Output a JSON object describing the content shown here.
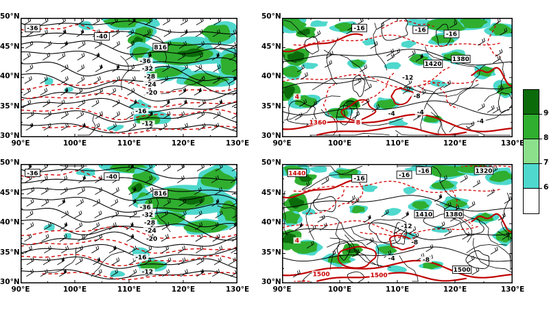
{
  "chart_data": {
    "type": "contour-map-grid",
    "rows": 2,
    "cols": 2,
    "x_axis": {
      "ticks": [
        "90°E",
        "100°E",
        "110°E",
        "120°E",
        "130°E"
      ],
      "range_deg": [
        90,
        130
      ]
    },
    "y_axis": {
      "ticks": [
        "50°N",
        "45°N",
        "40°N",
        "35°N",
        "30°N"
      ],
      "range_deg": [
        50,
        30
      ]
    },
    "colorbar": {
      "tick_labels": [
        "90",
        "80",
        "70",
        "60"
      ],
      "segment_colors": [
        "#0b6b0b",
        "#2fae2f",
        "#8ce08c",
        "#4fd8cd",
        "#ffffff"
      ]
    },
    "map_colors": {
      "shading_cyan": "#4fd8cd",
      "shading_green": "#2fae2f",
      "shading_dark_green": "#0b6b0b",
      "contour_black": "#000000",
      "contour_red": "#cc0000"
    },
    "panels": [
      {
        "id": "top-left",
        "contour_labels": [
          {
            "text": "-36",
            "x": 0.055,
            "y": 0.085,
            "boxed": true
          },
          {
            "text": "-40",
            "x": 0.375,
            "y": 0.155,
            "boxed": true
          },
          {
            "text": "816",
            "x": 0.645,
            "y": 0.245,
            "boxed": true
          },
          {
            "text": "-36",
            "x": 0.575,
            "y": 0.36
          },
          {
            "text": "-32",
            "x": 0.585,
            "y": 0.425
          },
          {
            "text": "-28",
            "x": 0.595,
            "y": 0.49
          },
          {
            "text": "-24",
            "x": 0.6,
            "y": 0.555
          },
          {
            "text": "-20",
            "x": 0.605,
            "y": 0.625
          },
          {
            "text": "-16",
            "x": 0.555,
            "y": 0.78
          },
          {
            "text": "-12",
            "x": 0.585,
            "y": 0.885
          }
        ]
      },
      {
        "id": "top-right",
        "contour_labels": [
          {
            "text": "-16",
            "x": 0.335,
            "y": 0.085,
            "boxed": true
          },
          {
            "text": "-16",
            "x": 0.6,
            "y": 0.1,
            "boxed": true
          },
          {
            "text": "-16",
            "x": 0.735,
            "y": 0.135,
            "boxed": true
          },
          {
            "text": "1420",
            "x": 0.655,
            "y": 0.385,
            "boxed": true
          },
          {
            "text": "1380",
            "x": 0.775,
            "y": 0.345,
            "boxed": true
          },
          {
            "text": "-12",
            "x": 0.545,
            "y": 0.5
          },
          {
            "text": "-8",
            "x": 0.585,
            "y": 0.655
          },
          {
            "text": "-4",
            "x": 0.475,
            "y": 0.8
          },
          {
            "text": "-4",
            "x": 0.6,
            "y": 0.79
          },
          {
            "text": "-4",
            "x": 0.86,
            "y": 0.865
          },
          {
            "text": "4",
            "x": 0.065,
            "y": 0.66,
            "color": "red"
          },
          {
            "text": "1360",
            "x": 0.155,
            "y": 0.875,
            "color": "red"
          },
          {
            "text": "8",
            "x": 0.33,
            "y": 0.875,
            "color": "red"
          }
        ]
      },
      {
        "id": "bottom-left",
        "contour_labels": [
          {
            "text": "-36",
            "x": 0.055,
            "y": 0.075,
            "boxed": true
          },
          {
            "text": "-40",
            "x": 0.42,
            "y": 0.105,
            "boxed": true
          },
          {
            "text": "816",
            "x": 0.645,
            "y": 0.245,
            "boxed": true
          },
          {
            "text": "-36",
            "x": 0.575,
            "y": 0.36
          },
          {
            "text": "-32",
            "x": 0.585,
            "y": 0.425
          },
          {
            "text": "-28",
            "x": 0.595,
            "y": 0.49
          },
          {
            "text": "-24",
            "x": 0.6,
            "y": 0.555
          },
          {
            "text": "-20",
            "x": 0.605,
            "y": 0.625
          },
          {
            "text": "-16",
            "x": 0.555,
            "y": 0.78
          },
          {
            "text": "-12",
            "x": 0.585,
            "y": 0.9
          }
        ]
      },
      {
        "id": "bottom-right",
        "contour_labels": [
          {
            "text": "1440",
            "x": 0.065,
            "y": 0.075,
            "color": "red",
            "boxed": true
          },
          {
            "text": "-16",
            "x": 0.335,
            "y": 0.12,
            "boxed": true
          },
          {
            "text": "-16",
            "x": 0.53,
            "y": 0.09,
            "boxed": true
          },
          {
            "text": "-16",
            "x": 0.615,
            "y": 0.055,
            "boxed": true
          },
          {
            "text": "1320",
            "x": 0.875,
            "y": 0.055,
            "boxed": true
          },
          {
            "text": "1410",
            "x": 0.615,
            "y": 0.42,
            "boxed": true
          },
          {
            "text": "1380",
            "x": 0.745,
            "y": 0.42,
            "boxed": true
          },
          {
            "text": "-12",
            "x": 0.54,
            "y": 0.52
          },
          {
            "text": "-8",
            "x": 0.575,
            "y": 0.655
          },
          {
            "text": "-4",
            "x": 0.475,
            "y": 0.79
          },
          {
            "text": "-8",
            "x": 0.625,
            "y": 0.8
          },
          {
            "text": "4",
            "x": 0.065,
            "y": 0.64,
            "color": "red"
          },
          {
            "text": "1500",
            "x": 0.17,
            "y": 0.92,
            "color": "red"
          },
          {
            "text": "1500",
            "x": 0.42,
            "y": 0.93,
            "color": "red"
          },
          {
            "text": "1500",
            "x": 0.78,
            "y": 0.885,
            "boxed": true
          }
        ]
      }
    ]
  }
}
